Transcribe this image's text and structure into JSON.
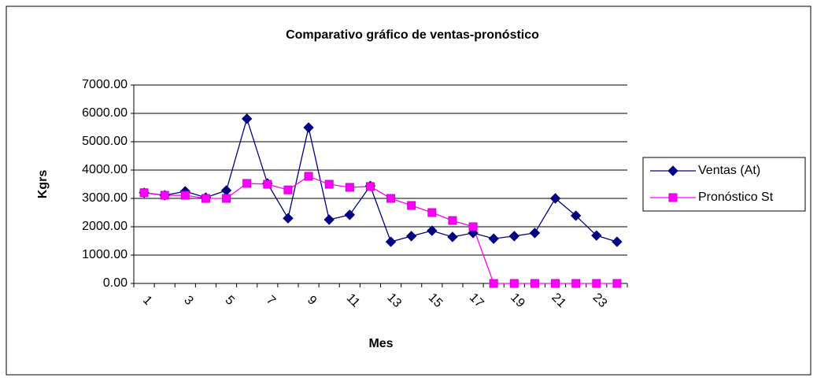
{
  "chart_data": {
    "type": "line",
    "title": "Comparativo gráfico de ventas-pronóstico",
    "x_label": "Mes",
    "y_label": "Kgrs",
    "categories": [
      "1",
      null,
      "3",
      null,
      "5",
      null,
      "7",
      null,
      "9",
      null,
      "11",
      null,
      "13",
      null,
      "15",
      null,
      "17",
      null,
      "19",
      null,
      "21",
      null,
      "23",
      null
    ],
    "series": [
      {
        "name": "Ventas (At)",
        "color": "#000080",
        "marker": "diamond",
        "values": [
          3200,
          3110,
          3250,
          3030,
          3280,
          5810,
          3530,
          2300,
          5500,
          2250,
          2420,
          3440,
          1470,
          1670,
          1860,
          1640,
          1780,
          1580,
          1670,
          1780,
          3000,
          2390,
          1690,
          1470
        ]
      },
      {
        "name": "Pronóstico St",
        "color": "#ff00ff",
        "marker": "square",
        "values": [
          3200,
          3110,
          3110,
          3000,
          3000,
          3530,
          3500,
          3300,
          3780,
          3500,
          3390,
          3420,
          3000,
          2750,
          2500,
          2220,
          2000,
          0,
          0,
          0,
          0,
          0,
          0,
          0
        ]
      }
    ],
    "ylim": [
      0,
      7000
    ],
    "yticks": [
      {
        "value": 0,
        "label": "0.00"
      },
      {
        "value": 1000,
        "label": "1000.00"
      },
      {
        "value": 2000,
        "label": "2000.00"
      },
      {
        "value": 3000,
        "label": "3000.00"
      },
      {
        "value": 4000,
        "label": "4000.00"
      },
      {
        "value": 5000,
        "label": "5000.00"
      },
      {
        "value": 6000,
        "label": "6000.00"
      },
      {
        "value": 7000,
        "label": "7000.00"
      }
    ],
    "grid": true,
    "legend": "right"
  }
}
